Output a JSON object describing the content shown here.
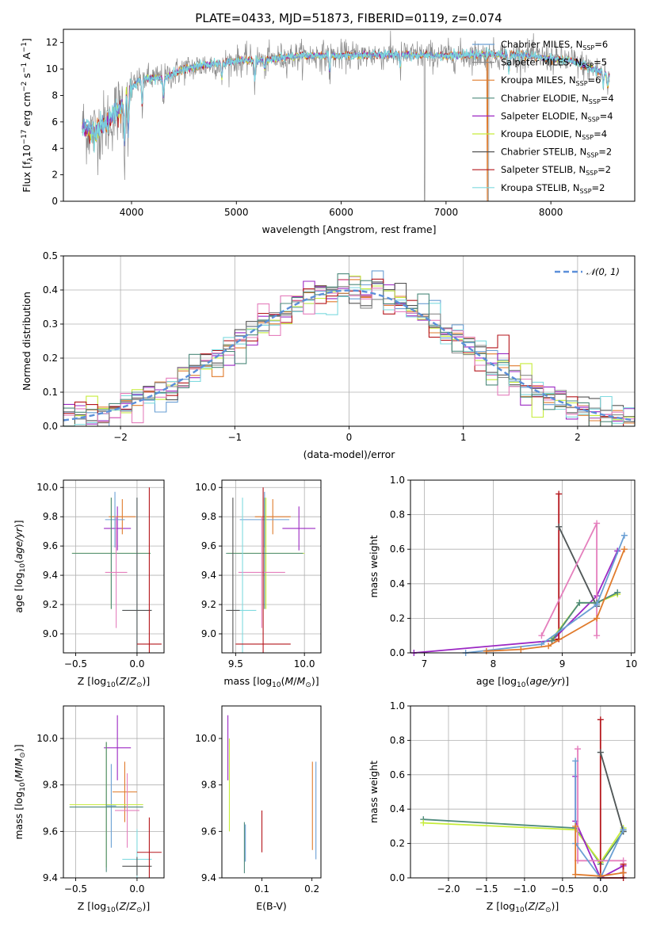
{
  "figure_title": "PLATE=0433, MJD=51873, FIBERID=0119, z=0.074",
  "colors": {
    "chabrier_miles": "#6a9fd4",
    "salpeter_miles": "#8a8a8a",
    "kroupa_miles": "#e07b2c",
    "chabrier_elodie": "#4e8a7c",
    "salpeter_elodie": "#9b27c3",
    "kroupa_elodie": "#c6ec3a",
    "chabrier_stelib": "#555555",
    "salpeter_stelib": "#b5161c",
    "kroupa_stelib": "#7fdadf",
    "pink": "#e57fbd",
    "gaussian": "#5b8fd9"
  },
  "chart_data": [
    {
      "id": "spectrum",
      "type": "line",
      "title": "PLATE=0433, MJD=51873, FIBERID=0119, z=0.074",
      "xlabel": "wavelength [Angstrom, rest frame]",
      "ylabel_parts": {
        "a": "Flux [f",
        "b": "λ",
        "c": "10",
        "d": "−17",
        "e": " erg cm",
        "f": "−2",
        "g": " s",
        "h": "−1",
        "i": " A",
        "j": "−1",
        "k": "]"
      },
      "xlim": [
        3350,
        8800
      ],
      "ylim": [
        0,
        13
      ],
      "xticks": [
        4000,
        5000,
        6000,
        7000,
        8000
      ],
      "yticks": [
        0,
        2,
        4,
        6,
        8,
        10,
        12
      ],
      "legend_position": "right",
      "legend": [
        {
          "name": "Chabrier MILES, N",
          "sub": "SSP",
          "val": "=6",
          "color_key": "chabrier_miles"
        },
        {
          "name": "Salpeter MILES, N",
          "sub": "SSP",
          "val": "=5",
          "color_key": "salpeter_miles"
        },
        {
          "name": "Kroupa MILES, N",
          "sub": "SSP",
          "val": "=6",
          "color_key": "kroupa_miles"
        },
        {
          "name": "Chabrier ELODIE, N",
          "sub": "SSP",
          "val": "=4",
          "color_key": "chabrier_elodie"
        },
        {
          "name": "Salpeter ELODIE, N",
          "sub": "SSP",
          "val": "=4",
          "color_key": "salpeter_elodie"
        },
        {
          "name": "Kroupa ELODIE, N",
          "sub": "SSP",
          "val": "=4",
          "color_key": "kroupa_elodie"
        },
        {
          "name": "Chabrier STELIB, N",
          "sub": "SSP",
          "val": "=2",
          "color_key": "chabrier_stelib"
        },
        {
          "name": "Salpeter STELIB, N",
          "sub": "SSP",
          "val": "=2",
          "color_key": "salpeter_stelib"
        },
        {
          "name": "Kroupa STELIB, N",
          "sub": "SSP",
          "val": "=2",
          "color_key": "kroupa_stelib"
        }
      ],
      "continuum_knots": [
        [
          3530,
          5.6
        ],
        [
          3650,
          5.2
        ],
        [
          3800,
          6.2
        ],
        [
          3900,
          7.2
        ],
        [
          3960,
          8.0
        ],
        [
          4000,
          8.6
        ],
        [
          4100,
          9.3
        ],
        [
          4300,
          9.3
        ],
        [
          4500,
          10.0
        ],
        [
          4700,
          10.3
        ],
        [
          5000,
          10.6
        ],
        [
          5300,
          10.7
        ],
        [
          5600,
          11.0
        ],
        [
          6000,
          11.0
        ],
        [
          6500,
          11.1
        ],
        [
          7000,
          11.0
        ],
        [
          7400,
          11.1
        ],
        [
          7800,
          11.0
        ],
        [
          8200,
          10.6
        ],
        [
          8560,
          9.5
        ]
      ],
      "absorption_features": [
        [
          3934,
          4.5
        ],
        [
          3969,
          4.0
        ],
        [
          4102,
          2.5
        ],
        [
          4305,
          1.8
        ],
        [
          4861,
          1.5
        ],
        [
          5175,
          1.8
        ],
        [
          5270,
          1.0
        ],
        [
          5890,
          1.5
        ],
        [
          6563,
          1.2
        ],
        [
          7600,
          1.5
        ],
        [
          8500,
          1.0
        ],
        [
          8542,
          1.2
        ],
        [
          8662,
          1.0
        ]
      ]
    },
    {
      "id": "residuals",
      "type": "histogram",
      "xlabel": "(data-model)/error",
      "ylabel": "Normed distribution",
      "xlim": [
        -2.5,
        2.5
      ],
      "ylim": [
        0,
        0.5
      ],
      "xticks": [
        -2,
        -1,
        0,
        1,
        2
      ],
      "yticks": [
        0.0,
        0.1,
        0.2,
        0.3,
        0.4,
        0.5
      ],
      "grid": true,
      "legend_position": "top-right",
      "legend_label": "𝒩(0, 1)",
      "bin_width": 0.1,
      "bin_start": -2.5,
      "normal_curve": {
        "mean": 0,
        "sigma": 1
      }
    },
    {
      "id": "age_vs_Z",
      "type": "errorbar",
      "xlabel": "Z [log",
      "ylabel": "age  [log",
      "xlim": [
        -0.6,
        0.22
      ],
      "ylim": [
        8.87,
        10.05
      ],
      "xticks": [
        -0.5,
        0.0
      ],
      "yticks": [
        9.0,
        9.2,
        9.4,
        9.6,
        9.8,
        10.0
      ],
      "grid": true,
      "points": [
        {
          "color_key": "salpeter_elodie",
          "x": -0.16,
          "xerr": 0.11,
          "y": 9.72,
          "yerr": 0.15
        },
        {
          "color_key": "kroupa_miles",
          "x": -0.12,
          "xerr": 0.11,
          "y": 9.8,
          "yerr": 0.12
        },
        {
          "color_key": "chabrier_miles",
          "x": -0.18,
          "xerr": 0.08,
          "y": 9.78,
          "yerr": 0.19
        },
        {
          "color_key": "kroupa_elodie",
          "x": -0.21,
          "xerr": 0.32,
          "y": 9.55,
          "yerr": 0.38
        },
        {
          "color_key": "chabrier_elodie",
          "x": -0.21,
          "xerr": 0.32,
          "y": 9.55,
          "yerr": 0.38
        },
        {
          "color_key": "pink",
          "x": -0.17,
          "xerr": 0.09,
          "y": 9.42,
          "yerr": 0.38
        },
        {
          "color_key": "kroupa_stelib",
          "x": 0.0,
          "xerr": 0.12,
          "y": 9.16,
          "yerr": 0.77
        },
        {
          "color_key": "chabrier_stelib",
          "x": 0.0,
          "xerr": 0.12,
          "y": 9.16,
          "yerr": 0.77
        },
        {
          "color_key": "salpeter_stelib",
          "x": 0.1,
          "xerr": 0.1,
          "y": 8.93,
          "yerr": 1.07
        }
      ]
    },
    {
      "id": "age_vs_mass",
      "type": "errorbar",
      "xlabel": "mass [log",
      "ylabel": "",
      "xlim": [
        9.4,
        10.12
      ],
      "ylim": [
        8.87,
        10.05
      ],
      "xticks": [
        9.5,
        10.0
      ],
      "yticks": [
        9.0,
        9.2,
        9.4,
        9.6,
        9.8,
        10.0
      ],
      "grid": true,
      "points": [
        {
          "color_key": "salpeter_elodie",
          "x": 9.96,
          "xerr": 0.12,
          "y": 9.72,
          "yerr": 0.15
        },
        {
          "color_key": "kroupa_miles",
          "x": 9.77,
          "xerr": 0.13,
          "y": 9.8,
          "yerr": 0.12
        },
        {
          "color_key": "chabrier_miles",
          "x": 9.71,
          "xerr": 0.18,
          "y": 9.78,
          "yerr": 0.19
        },
        {
          "color_key": "kroupa_elodie",
          "x": 9.72,
          "xerr": 0.28,
          "y": 9.55,
          "yerr": 0.38
        },
        {
          "color_key": "chabrier_elodie",
          "x": 9.71,
          "xerr": 0.28,
          "y": 9.55,
          "yerr": 0.38
        },
        {
          "color_key": "pink",
          "x": 9.69,
          "xerr": 0.17,
          "y": 9.42,
          "yerr": 0.38
        },
        {
          "color_key": "kroupa_stelib",
          "x": 9.55,
          "xerr": 0.1,
          "y": 9.16,
          "yerr": 0.77
        },
        {
          "color_key": "chabrier_stelib",
          "x": 9.48,
          "xerr": 0.05,
          "y": 9.16,
          "yerr": 0.77
        },
        {
          "color_key": "salpeter_stelib",
          "x": 9.7,
          "xerr": 0.2,
          "y": 8.93,
          "yerr": 1.07
        }
      ]
    },
    {
      "id": "weight_vs_age",
      "type": "line",
      "xlabel": "age  [log",
      "ylabel": "mass weight",
      "xlim": [
        6.8,
        10.05
      ],
      "ylim": [
        0,
        1
      ],
      "xticks": [
        7,
        8,
        9,
        10
      ],
      "yticks": [
        0.0,
        0.2,
        0.4,
        0.6,
        0.8,
        1.0
      ],
      "grid": true,
      "series": [
        {
          "color_key": "salpeter_elodie",
          "x": [
            6.85,
            8.85,
            9.5,
            9.8
          ],
          "y": [
            0.0,
            0.07,
            0.33,
            0.59
          ]
        },
        {
          "color_key": "salpeter_stelib",
          "x": [
            8.95,
            8.95
          ],
          "y": [
            0.08,
            0.92
          ],
          "pre": [
            [
              8.85,
              0.07
            ]
          ]
        },
        {
          "color_key": "kroupa_stelib",
          "x": [
            8.95,
            9.5
          ],
          "y": [
            0.73,
            0.27
          ]
        },
        {
          "color_key": "chabrier_stelib",
          "x": [
            8.95,
            9.5
          ],
          "y": [
            0.73,
            0.27
          ]
        },
        {
          "color_key": "pink",
          "x": [
            8.7,
            9.5,
            9.5
          ],
          "y": [
            0.1,
            0.75,
            0.1
          ]
        },
        {
          "color_key": "kroupa_elodie",
          "x": [
            8.85,
            9.25,
            9.5,
            9.8
          ],
          "y": [
            0.08,
            0.29,
            0.29,
            0.34
          ]
        },
        {
          "color_key": "chabrier_elodie",
          "x": [
            8.85,
            9.25,
            9.5,
            9.8
          ],
          "y": [
            0.07,
            0.29,
            0.29,
            0.35
          ]
        },
        {
          "color_key": "chabrier_miles",
          "x": [
            7.6,
            8.7,
            9.5,
            9.9
          ],
          "y": [
            0.0,
            0.05,
            0.28,
            0.68
          ]
        },
        {
          "color_key": "kroupa_miles",
          "x": [
            7.9,
            8.4,
            8.8,
            9.5,
            9.9
          ],
          "y": [
            0.01,
            0.02,
            0.04,
            0.2,
            0.6
          ]
        }
      ]
    },
    {
      "id": "mass_vs_Z",
      "type": "errorbar",
      "xlabel": "Z [log",
      "ylabel": "mass [log",
      "xlim": [
        -0.6,
        0.22
      ],
      "ylim": [
        9.4,
        10.14
      ],
      "xticks": [
        -0.5,
        0.0
      ],
      "yticks": [
        9.4,
        9.6,
        9.8,
        10.0
      ],
      "grid": true,
      "points": [
        {
          "color_key": "salpeter_elodie",
          "x": -0.16,
          "xerr": 0.11,
          "y": 9.96,
          "yerr": 0.14
        },
        {
          "color_key": "kroupa_miles",
          "x": -0.1,
          "xerr": 0.1,
          "y": 9.77,
          "yerr": 0.13
        },
        {
          "color_key": "chabrier_miles",
          "x": -0.21,
          "xerr": 0.04,
          "y": 9.71,
          "yerr": 0.18
        },
        {
          "color_key": "kroupa_elodie",
          "x": -0.25,
          "xerr": 0.3,
          "y": 9.715,
          "yerr": 0.27
        },
        {
          "color_key": "chabrier_elodie",
          "x": -0.25,
          "xerr": 0.3,
          "y": 9.705,
          "yerr": 0.28
        },
        {
          "color_key": "pink",
          "x": -0.08,
          "xerr": 0.1,
          "y": 9.69,
          "yerr": 0.16
        },
        {
          "color_key": "kroupa_stelib",
          "x": 0.0,
          "xerr": 0.12,
          "y": 9.48,
          "yerr": 0.13
        },
        {
          "color_key": "chabrier_stelib",
          "x": 0.0,
          "xerr": 0.12,
          "y": 9.45,
          "yerr": 0.04
        },
        {
          "color_key": "salpeter_stelib",
          "x": 0.1,
          "xerr": 0.1,
          "y": 9.51,
          "yerr": 0.15
        }
      ]
    },
    {
      "id": "mass_vs_ebv",
      "type": "errorbar",
      "xlabel": "E(B-V)",
      "ylabel": "",
      "xlim": [
        0.02,
        0.218
      ],
      "ylim": [
        9.4,
        10.14
      ],
      "xticks": [
        0.1,
        0.2
      ],
      "yticks": [
        9.4,
        9.6,
        9.8,
        10.0
      ],
      "grid": false,
      "points": [
        {
          "color_key": "salpeter_elodie",
          "x": 0.032,
          "xerr": 0,
          "y": 9.96,
          "yerr": 0.14
        },
        {
          "color_key": "kroupa_elodie",
          "x": 0.035,
          "xerr": 0,
          "y": 9.8,
          "yerr": 0.2
        },
        {
          "color_key": "chabrier_elodie",
          "x": 0.065,
          "xerr": 0,
          "y": 9.53,
          "yerr": 0.11
        },
        {
          "color_key": "chabrier_miles",
          "x": 0.067,
          "xerr": 0,
          "y": 9.55,
          "yerr": 0.08
        },
        {
          "color_key": "salpeter_stelib",
          "x": 0.1,
          "xerr": 0,
          "y": 9.6,
          "yerr": 0.09
        },
        {
          "color_key": "kroupa_miles",
          "x": 0.201,
          "xerr": 0,
          "y": 9.71,
          "yerr": 0.19
        },
        {
          "color_key": "chabrier_miles",
          "x": 0.208,
          "xerr": 0,
          "y": 9.69,
          "yerr": 0.21
        }
      ]
    },
    {
      "id": "weight_vs_Z",
      "type": "line",
      "xlabel": "Z [log",
      "ylabel": "mass weight",
      "xlim": [
        -2.5,
        0.45
      ],
      "ylim": [
        0,
        1
      ],
      "xticks": [
        -2.0,
        -1.5,
        -1.0,
        -0.5,
        0.0
      ],
      "xticklabels": [
        "−2.0",
        "−1.5",
        "−1.0",
        "−0.5",
        "0.0"
      ],
      "yticks": [
        0.0,
        0.2,
        0.4,
        0.6,
        0.8,
        1.0
      ],
      "grid": true,
      "series": [
        {
          "color_key": "chabrier_elodie",
          "x": [
            -2.33,
            -0.33,
            0.0,
            0.3
          ],
          "y": [
            0.34,
            0.29,
            0.08,
            0.27
          ]
        },
        {
          "color_key": "kroupa_elodie",
          "x": [
            -2.33,
            -0.33,
            0.0,
            0.3
          ],
          "y": [
            0.32,
            0.28,
            0.09,
            0.29
          ]
        },
        {
          "color_key": "salpeter_elodie",
          "x": [
            -0.33,
            -0.33,
            0.0,
            0.3,
            0.3
          ],
          "y": [
            0.59,
            0.33,
            0.0,
            0.07,
            0.03
          ]
        },
        {
          "color_key": "salpeter_stelib",
          "x": [
            0.0,
            0.0,
            0.3,
            0.3
          ],
          "y": [
            0.92,
            0.0,
            0.0,
            0.08
          ]
        },
        {
          "color_key": "kroupa_stelib",
          "x": [
            0.0,
            0.3
          ],
          "y": [
            0.73,
            0.27
          ]
        },
        {
          "color_key": "chabrier_stelib",
          "x": [
            0.0,
            0.3
          ],
          "y": [
            0.73,
            0.27
          ]
        },
        {
          "color_key": "pink",
          "x": [
            -0.3,
            -0.3,
            0.3
          ],
          "y": [
            0.75,
            0.1,
            0.1
          ]
        },
        {
          "color_key": "chabrier_miles",
          "x": [
            -0.33,
            -0.33,
            0.0,
            0.3
          ],
          "y": [
            0.68,
            0.2,
            0.0,
            0.28
          ]
        },
        {
          "color_key": "kroupa_miles",
          "x": [
            -0.33,
            -0.33,
            0.0,
            0.3
          ],
          "y": [
            0.3,
            0.02,
            0.01,
            0.03
          ]
        }
      ]
    }
  ]
}
